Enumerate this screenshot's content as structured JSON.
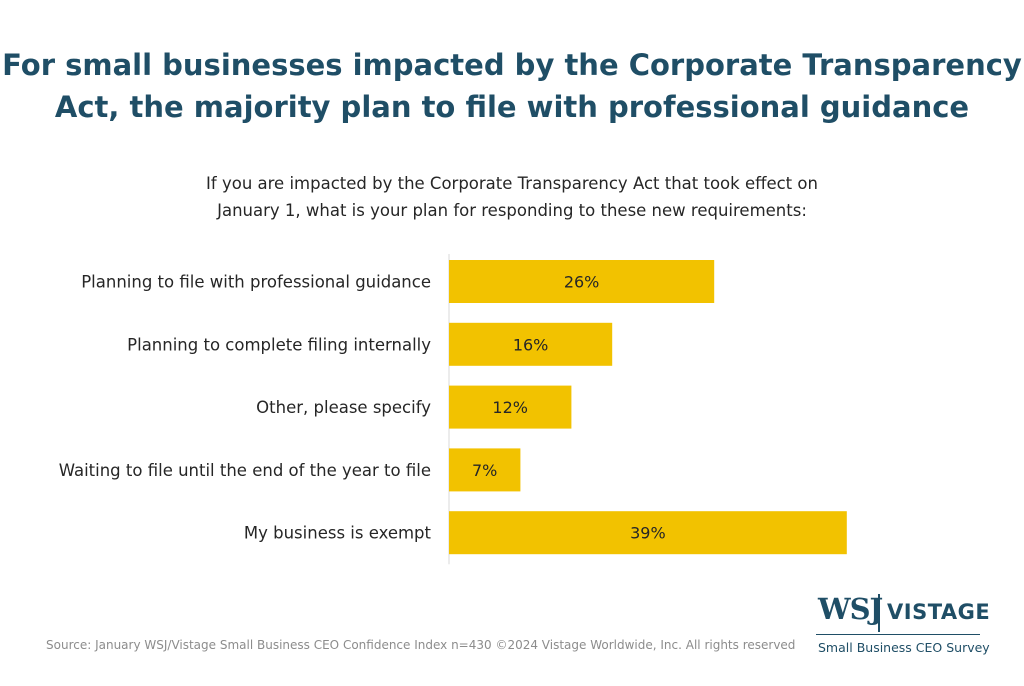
{
  "title_lines": [
    "For small businesses impacted by the Corporate Transparency",
    "Act, the majority plan to file with professional guidance"
  ],
  "subtitle_lines": [
    "If you are impacted by the Corporate Transparency Act that took effect on",
    "January 1, what is your plan for responding to these new requirements:"
  ],
  "chart_data": {
    "type": "bar",
    "orientation": "horizontal",
    "categories": [
      "Planning to file with professional guidance",
      "Planning to complete filing internally",
      "Other, please specify",
      "Waiting to file until the end of the year to file",
      "My business is exempt"
    ],
    "values": [
      26,
      16,
      12,
      7,
      39
    ],
    "data_labels": [
      "26%",
      "16%",
      "12%",
      "7%",
      "39%"
    ],
    "xlim": [
      0,
      40
    ],
    "bar_color": "#f2c200",
    "grid": false
  },
  "source": "Source: January WSJ/Vistage Small Business CEO Confidence Index n=430 ©2024 Vistage Worldwide, Inc. All rights reserved",
  "logo": {
    "wsj": "WSJ",
    "vistage": "VISTAGE",
    "tagline": "Small Business CEO Survey"
  }
}
